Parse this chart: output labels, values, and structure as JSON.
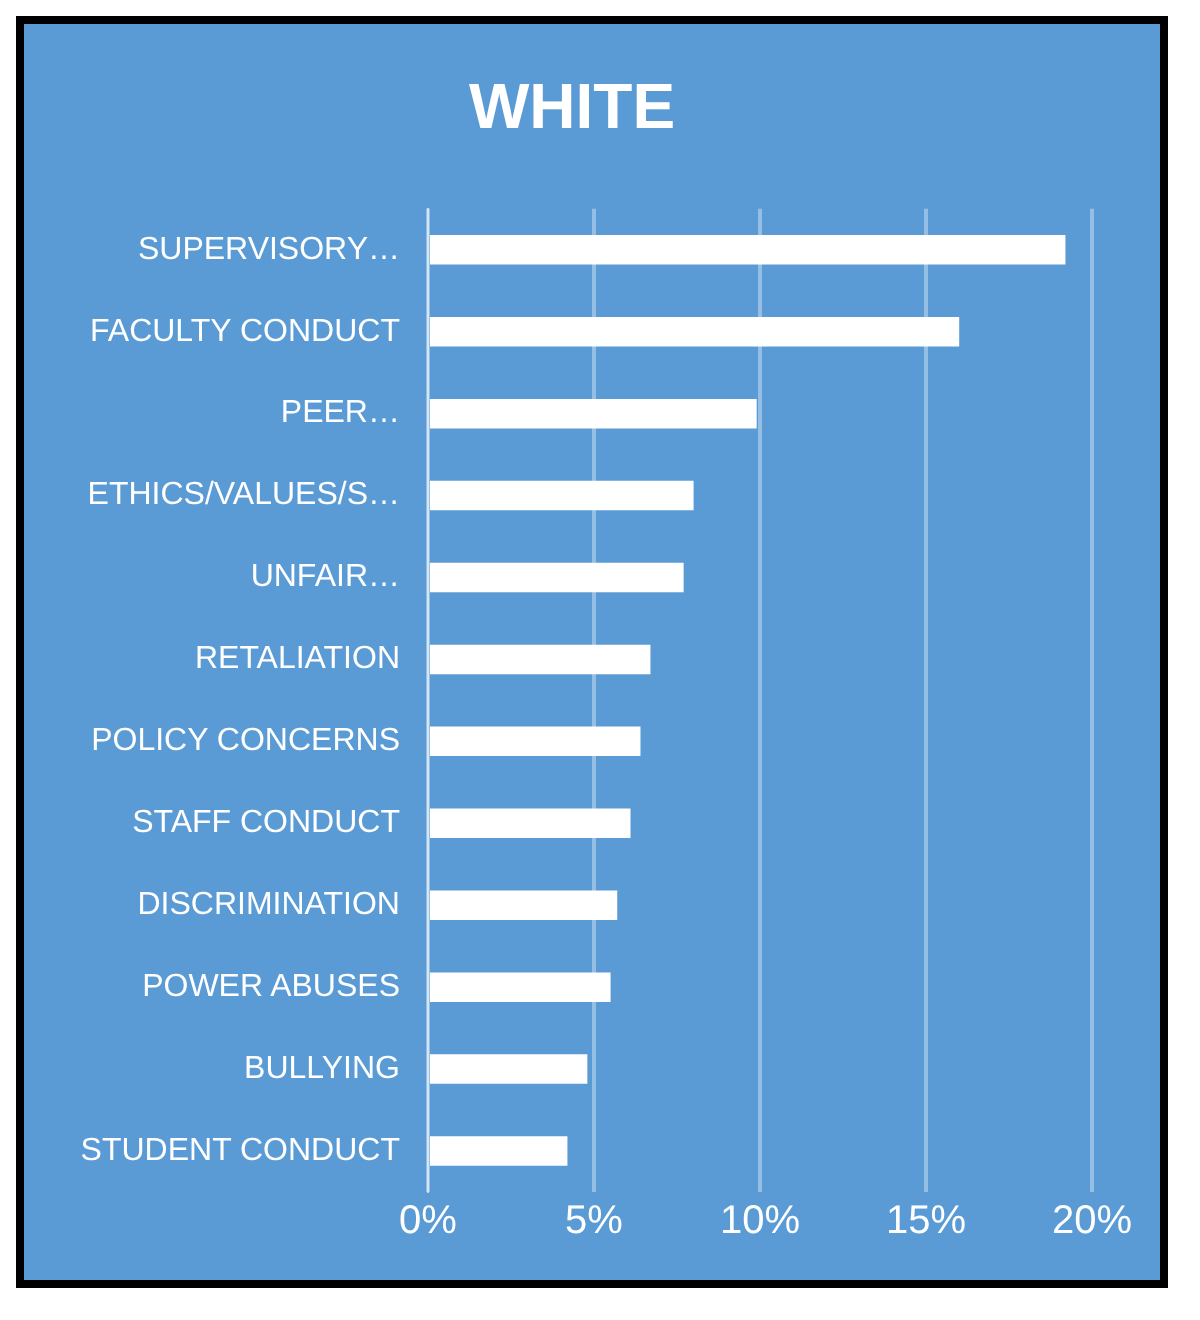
{
  "chart_data": {
    "type": "bar",
    "orientation": "horizontal",
    "title": "WHITE",
    "categories": [
      "SUPERVISORY…",
      "FACULTY CONDUCT",
      "PEER…",
      "ETHICS/VALUES/S…",
      "UNFAIR…",
      "RETALIATION",
      "POLICY CONCERNS",
      "STAFF CONDUCT",
      "DISCRIMINATION",
      "POWER ABUSES",
      "BULLYING",
      "STUDENT CONDUCT"
    ],
    "values": [
      19.2,
      16.0,
      9.9,
      8.0,
      7.7,
      6.7,
      6.4,
      6.1,
      5.7,
      5.5,
      4.8,
      4.2
    ],
    "color": "#ffffff",
    "xlim": [
      0,
      20
    ],
    "xticks": [
      {
        "value": 0,
        "label": "0%"
      },
      {
        "value": 5,
        "label": "5%"
      },
      {
        "value": 10,
        "label": "10%"
      },
      {
        "value": 15,
        "label": "15%"
      },
      {
        "value": 20,
        "label": "20%"
      }
    ],
    "grid": "x",
    "legend": false
  }
}
